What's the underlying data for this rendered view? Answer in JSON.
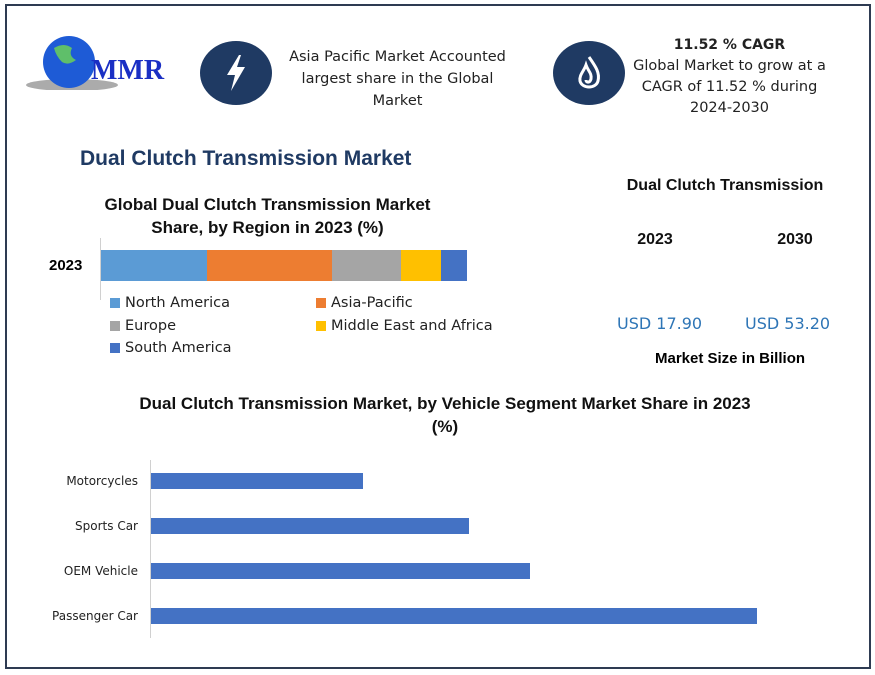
{
  "logo": {
    "text": "MMR"
  },
  "highlight1": {
    "icon": "lightning-icon",
    "text": "Asia Pacific Market Accounted largest share in the Global Market"
  },
  "highlight2": {
    "icon": "flame-icon",
    "title": "11.52 % CAGR",
    "text": "Global Market to grow at a CAGR of 11.52 % during 2024-2030"
  },
  "main_title": "Dual Clutch Transmission Market",
  "market_size": {
    "title": "Dual Clutch Transmission",
    "year1": "2023",
    "year2": "2030",
    "value1": "USD 17.90",
    "value2": "USD 53.20",
    "caption": "Market Size in Billion"
  },
  "colors": {
    "accent": "#1f3a63",
    "value": "#2e75b6"
  },
  "chart_data": [
    {
      "type": "bar",
      "stacked": true,
      "orientation": "horizontal",
      "title": "Global Dual Clutch Transmission Market Share, by Region in 2023 (%)",
      "categories": [
        "2023"
      ],
      "series": [
        {
          "name": "North America",
          "values": [
            29
          ],
          "color": "#5b9bd5"
        },
        {
          "name": "Asia-Pacific",
          "values": [
            34
          ],
          "color": "#ed7d31"
        },
        {
          "name": "Europe",
          "values": [
            19
          ],
          "color": "#a5a5a5"
        },
        {
          "name": "Middle East and Africa",
          "values": [
            11
          ],
          "color": "#ffc000"
        },
        {
          "name": "South America",
          "values": [
            7
          ],
          "color": "#4472c4"
        }
      ],
      "legend": "bottom"
    },
    {
      "type": "bar",
      "orientation": "horizontal",
      "title": "Dual Clutch Transmission Market, by Vehicle Segment Market Share in 2023 (%)",
      "categories": [
        "Motorcycles",
        "Sports Car",
        "OEM Vehicle",
        "Passenger Car"
      ],
      "values": [
        14,
        21,
        25,
        40
      ],
      "color": "#4472c4",
      "xlim": [
        0,
        40
      ]
    }
  ]
}
